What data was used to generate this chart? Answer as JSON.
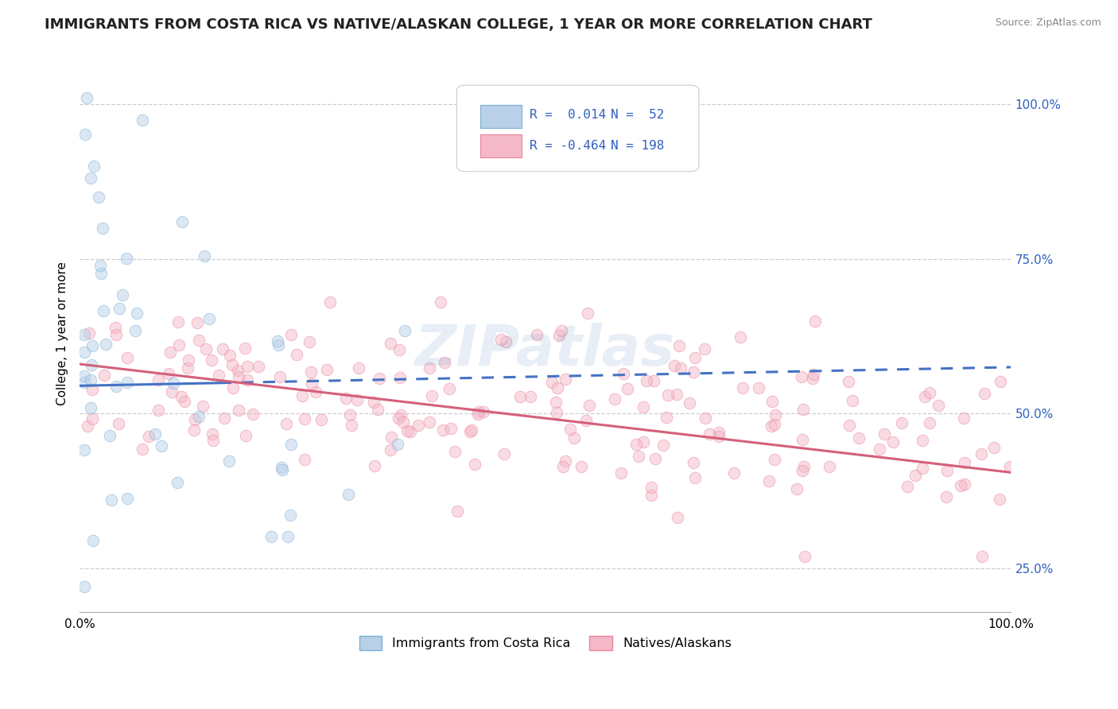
{
  "title": "IMMIGRANTS FROM COSTA RICA VS NATIVE/ALASKAN COLLEGE, 1 YEAR OR MORE CORRELATION CHART",
  "source_text": "Source: ZipAtlas.com",
  "ylabel": "College, 1 year or more",
  "xticklabels": [
    "0.0%",
    "100.0%"
  ],
  "legend_entries": [
    {
      "label": "Immigrants from Costa Rica",
      "color": "#b8d0e8",
      "edge": "#7aafd4"
    },
    {
      "label": "Natives/Alaskans",
      "color": "#f4b8c8",
      "edge": "#e8849a"
    }
  ],
  "legend_text_color": "#3060c0",
  "legend_r1": "R =  0.014",
  "legend_n1": "N =  52",
  "legend_r2": "R = -0.464",
  "legend_n2": "N = 198",
  "blue_line_y_start": 0.545,
  "blue_line_y_end": 0.575,
  "blue_line_solid_end_x": 0.15,
  "pink_line_y_start": 0.58,
  "pink_line_y_end": 0.405,
  "scatter_size": 110,
  "scatter_alpha": 0.5,
  "line_width": 2.2,
  "grid_color": "#c8c8c8",
  "grid_linestyle": "--",
  "background_color": "#ffffff",
  "title_fontsize": 13,
  "axis_label_fontsize": 11,
  "tick_label_fontsize": 11,
  "watermark_text": "ZIPatlas",
  "watermark_alpha": 0.13,
  "xlim": [
    0.0,
    1.0
  ],
  "ylim": [
    0.18,
    1.08
  ],
  "yticks_right": [
    0.25,
    0.5,
    0.75,
    1.0
  ],
  "ytick_labels_right": [
    "25.0%",
    "50.0%",
    "75.0%",
    "100.0%"
  ]
}
